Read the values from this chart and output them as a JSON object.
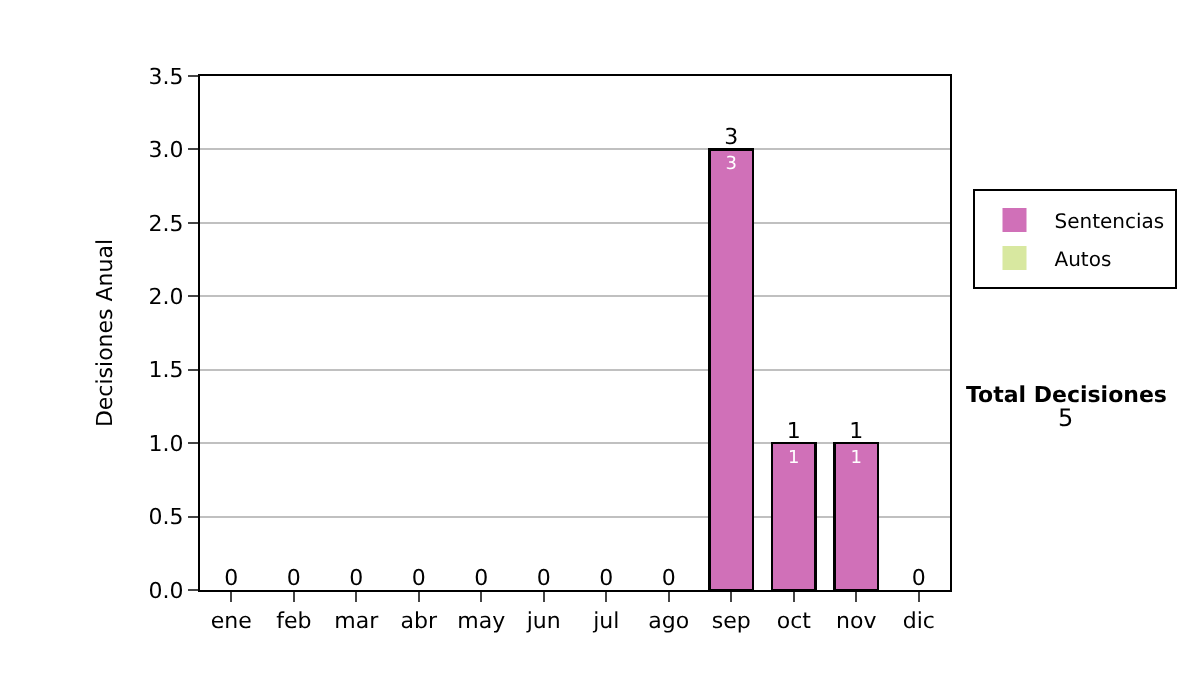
{
  "chart_data": {
    "type": "bar",
    "stacked": true,
    "ylabel": "Decisiones Anual",
    "categories": [
      "ene",
      "feb",
      "mar",
      "abr",
      "may",
      "jun",
      "jul",
      "ago",
      "sep",
      "oct",
      "nov",
      "dic"
    ],
    "series": [
      {
        "name": "Sentencias",
        "color": "#d070b8",
        "values": [
          0,
          0,
          0,
          0,
          0,
          0,
          0,
          0,
          3,
          1,
          1,
          0
        ],
        "value_labels": [
          null,
          null,
          null,
          null,
          null,
          null,
          null,
          null,
          "3",
          "1",
          "1",
          null
        ]
      },
      {
        "name": "Autos",
        "color": "#d8e8a0",
        "values": [
          0,
          0,
          0,
          0,
          0,
          0,
          0,
          0,
          0,
          0,
          0,
          0
        ]
      }
    ],
    "totals": [
      "0",
      "0",
      "0",
      "0",
      "0",
      "0",
      "0",
      "0",
      "3",
      "1",
      "1",
      "0"
    ],
    "ylim": [
      0,
      3.5
    ],
    "yticks": [
      {
        "value": 0,
        "label": "0.0"
      },
      {
        "value": 0.5,
        "label": "0.5"
      },
      {
        "value": 1,
        "label": "1.0"
      },
      {
        "value": 1.5,
        "label": "1.5"
      },
      {
        "value": 2,
        "label": "2.0"
      },
      {
        "value": 2.5,
        "label": "2.5"
      },
      {
        "value": 3,
        "label": "3.0"
      },
      {
        "value": 3.5,
        "label": "3.5"
      }
    ],
    "grid": "y",
    "legend": "right",
    "annotations": [
      "Total Decisiones",
      "5"
    ]
  }
}
